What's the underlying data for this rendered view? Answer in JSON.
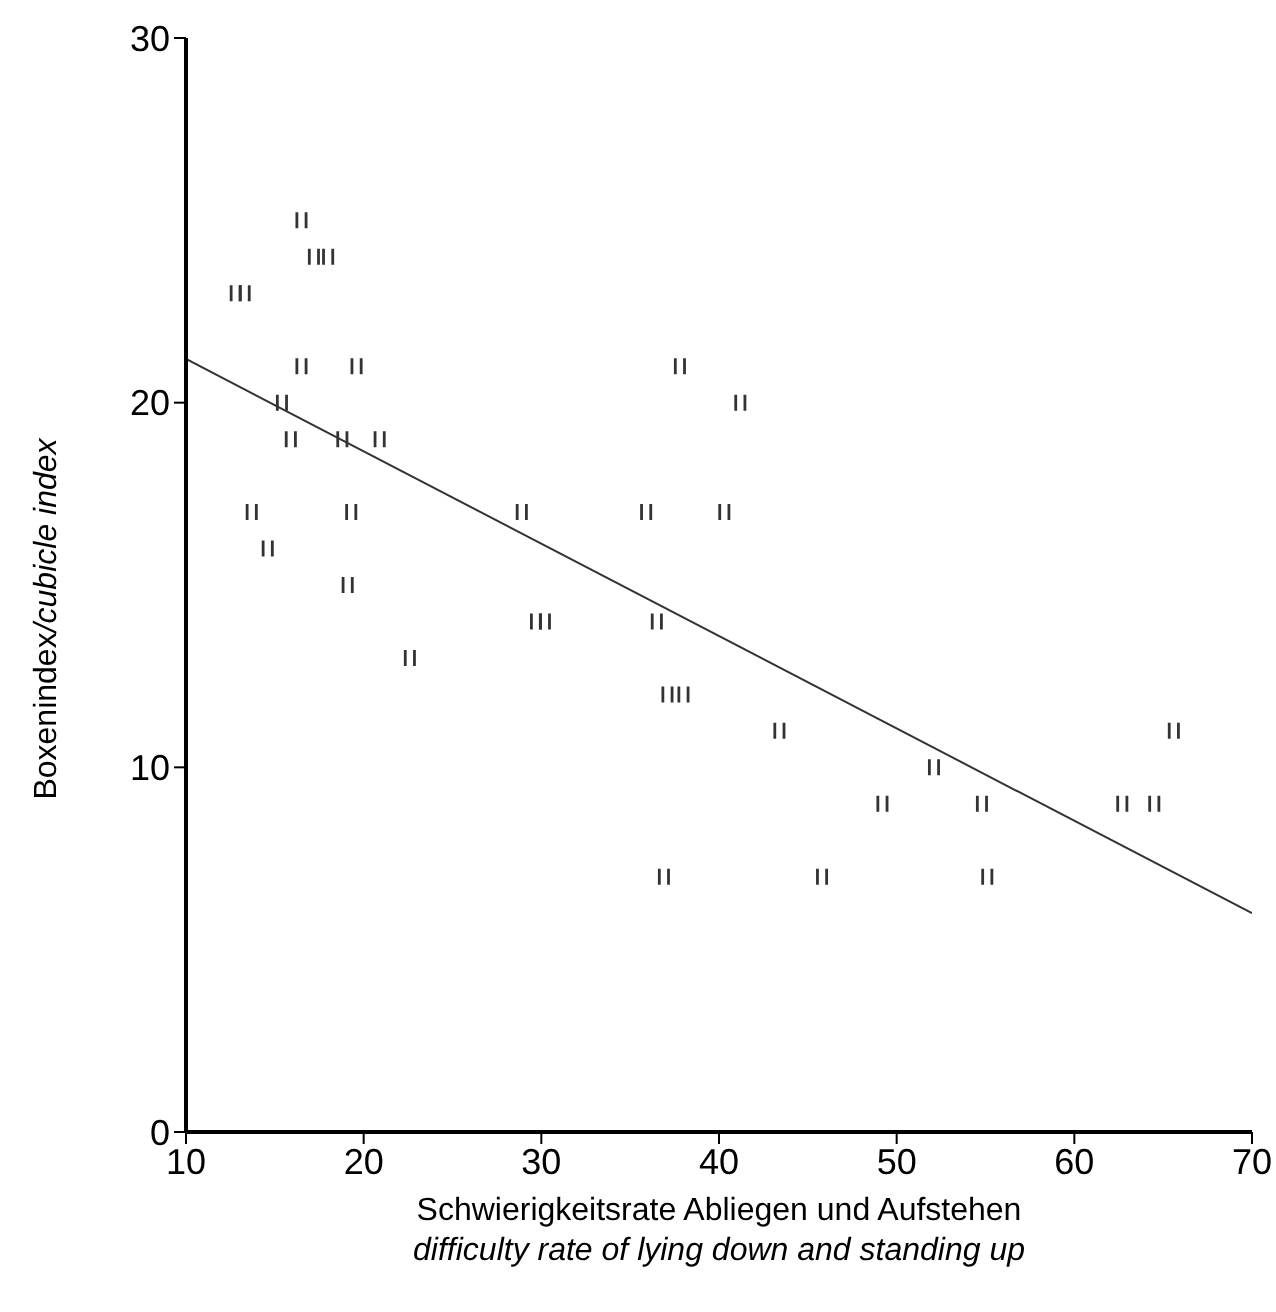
{
  "chart_data": {
    "type": "scatter",
    "xlabel": "Schwierigkeitsrate Abliegen und Aufstehen\ndifficulty rate of lying down and standing up",
    "ylabel": "Boxenindex/cubicle index",
    "xlim": [
      10,
      70
    ],
    "xticks": [
      10,
      20,
      30,
      40,
      50,
      60,
      70
    ],
    "ylim": [
      0,
      30
    ],
    "yticks": [
      0,
      10,
      20,
      30
    ],
    "grid": false,
    "legend": false,
    "series": [
      {
        "color": "#333333",
        "x": [
          16.5,
          17.2,
          18.0,
          12.8,
          13.3,
          16.5,
          19.6,
          37.8,
          15.4,
          41.2,
          15.9,
          18.8,
          20.9,
          13.7,
          19.3,
          28.9,
          35.9,
          40.3,
          14.6,
          19.1,
          29.7,
          30.2,
          36.5,
          22.6,
          37.1,
          38.0,
          43.4,
          65.6,
          52.1,
          49.2,
          54.8,
          62.7,
          64.5,
          36.9,
          45.8,
          55.1
        ],
        "values": [
          25,
          24,
          24,
          23,
          23,
          21,
          21,
          21,
          20,
          20,
          19,
          19,
          19,
          17,
          17,
          17,
          17,
          17,
          16,
          15,
          14,
          14,
          14,
          13,
          12,
          12,
          11,
          11,
          10,
          9,
          9,
          9,
          9,
          7,
          7,
          7
        ]
      },
      {
        "type": "line",
        "color": "#333333",
        "x": [
          10,
          70
        ],
        "values": [
          21.2,
          6.0
        ]
      }
    ]
  }
}
